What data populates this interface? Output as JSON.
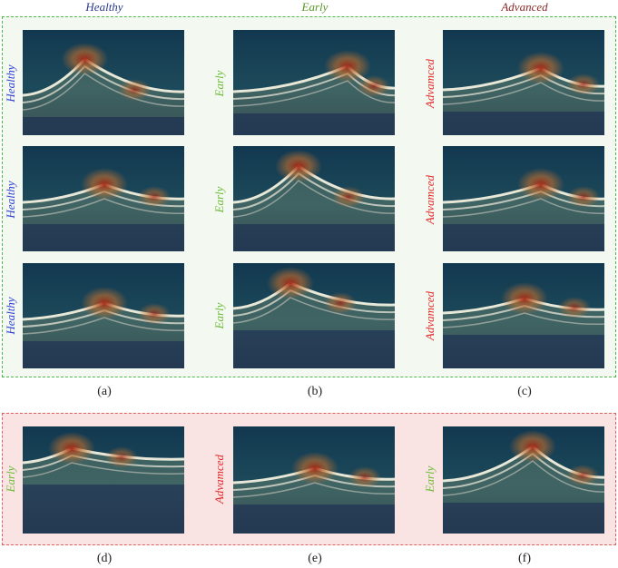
{
  "column_headers": [
    {
      "text": "Healthy",
      "color": "#2b3a8c"
    },
    {
      "text": "Early",
      "color": "#5a9a2a"
    },
    {
      "text": "Advanced",
      "color": "#8c2a2a"
    }
  ],
  "row_labels": [
    [
      "Healthy",
      "Early",
      "Advamced"
    ],
    [
      "Healthy",
      "Early",
      "Advamced"
    ],
    [
      "Healthy",
      "Early",
      "Advamced"
    ]
  ],
  "bottom_row_labels": [
    "Early",
    "Advamced",
    "Early"
  ],
  "label_colors": {
    "Healthy": "#2f3fd0",
    "Early": "#6dbb3a",
    "Advamced": "#e02828"
  },
  "captions_top": [
    "(a)",
    "(b)",
    "(c)"
  ],
  "captions_bottom": [
    "(d)",
    "(e)",
    "(f)"
  ],
  "box_colors": {
    "top_border": "#4cb84c",
    "top_fill": "#f3f8f1",
    "bottom_border": "#e06060",
    "bottom_fill": "#f9e3e3"
  }
}
